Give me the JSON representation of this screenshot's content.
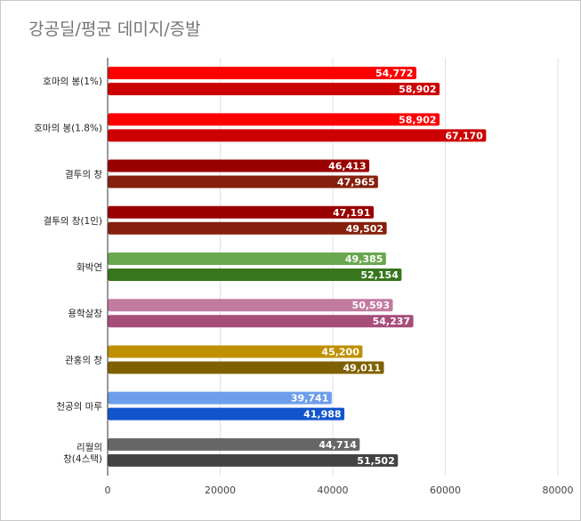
{
  "chart_data": {
    "type": "bar",
    "orientation": "horizontal",
    "title": "강공딜/평균 데미지/증발",
    "xlabel": "",
    "ylabel": "",
    "xlim": [
      0,
      80000
    ],
    "ticks": [
      "0",
      "20000",
      "40000",
      "60000",
      "80000"
    ],
    "tick_values": [
      0,
      20000,
      40000,
      60000,
      80000
    ],
    "grid": true,
    "legend": "none",
    "categories": [
      {
        "lines": [
          "호마의 봉(1%)"
        ],
        "values": [
          54772,
          58902
        ],
        "labels": [
          "54,772",
          "58,902"
        ],
        "colors": [
          "#ff0000",
          "#cc0000"
        ]
      },
      {
        "lines": [
          "호마의 봉(1.8%)"
        ],
        "values": [
          58902,
          67170
        ],
        "labels": [
          "58,902",
          "67,170"
        ],
        "colors": [
          "#ff0000",
          "#cc0000"
        ]
      },
      {
        "lines": [
          "결투의 창"
        ],
        "values": [
          46413,
          47965
        ],
        "labels": [
          "46,413",
          "47,965"
        ],
        "colors": [
          "#990000",
          "#85200c"
        ]
      },
      {
        "lines": [
          "결투의 창(1인)"
        ],
        "values": [
          47191,
          49502
        ],
        "labels": [
          "47,191",
          "49,502"
        ],
        "colors": [
          "#990000",
          "#85200c"
        ]
      },
      {
        "lines": [
          "화박연"
        ],
        "values": [
          49385,
          52154
        ],
        "labels": [
          "49,385",
          "52,154"
        ],
        "colors": [
          "#6aa84f",
          "#38761d"
        ]
      },
      {
        "lines": [
          "용학살창"
        ],
        "values": [
          50593,
          54237
        ],
        "labels": [
          "50,593",
          "54,237"
        ],
        "colors": [
          "#c27ba0",
          "#a64d79"
        ]
      },
      {
        "lines": [
          "관홍의 창"
        ],
        "values": [
          45200,
          49011
        ],
        "labels": [
          "45,200",
          "49,011"
        ],
        "colors": [
          "#bf9000",
          "#7f6000"
        ]
      },
      {
        "lines": [
          "천공의 마루"
        ],
        "values": [
          39741,
          41988
        ],
        "labels": [
          "39,741",
          "41,988"
        ],
        "colors": [
          "#6d9eeb",
          "#1155cc"
        ]
      },
      {
        "lines": [
          "리월의",
          "창(4스택)"
        ],
        "values": [
          44714,
          51502
        ],
        "labels": [
          "44,714",
          "51,502"
        ],
        "colors": [
          "#666666",
          "#434343"
        ]
      }
    ]
  }
}
